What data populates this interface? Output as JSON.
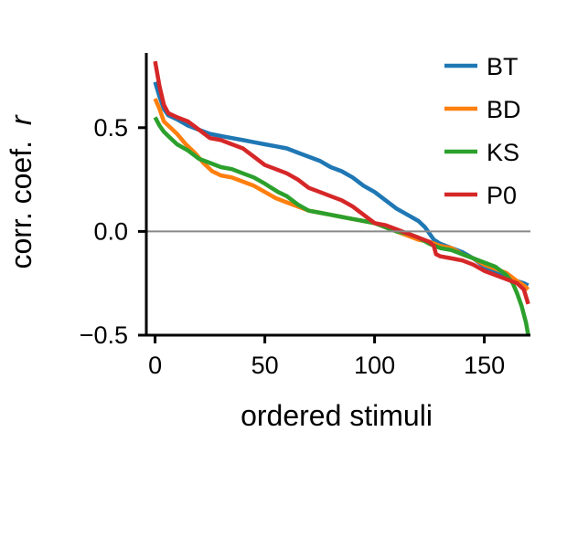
{
  "chart_data": {
    "type": "line",
    "title": "",
    "xlabel": "ordered stimuli",
    "ylabel": "corr. coef.",
    "ylabel_symbol": "r",
    "xlim": [
      -4,
      171
    ],
    "ylim": [
      -0.5,
      0.86
    ],
    "x_ticks": [
      0,
      50,
      100,
      150
    ],
    "x_tick_labels": [
      "0",
      "50",
      "100",
      "150"
    ],
    "y_ticks": [
      -0.5,
      0.0,
      0.5
    ],
    "y_tick_labels": [
      "−0.5",
      "0.0",
      "0.5"
    ],
    "reference_line": {
      "y": 0.0,
      "color": "#888888"
    },
    "grid": false,
    "legend_position": "top-right",
    "series": [
      {
        "name": "BT",
        "color": "#1f77b4",
        "points": [
          [
            0,
            0.72
          ],
          [
            2,
            0.65
          ],
          [
            4,
            0.59
          ],
          [
            6,
            0.56
          ],
          [
            10,
            0.54
          ],
          [
            15,
            0.51
          ],
          [
            20,
            0.49
          ],
          [
            25,
            0.47
          ],
          [
            30,
            0.46
          ],
          [
            35,
            0.45
          ],
          [
            40,
            0.44
          ],
          [
            45,
            0.43
          ],
          [
            50,
            0.42
          ],
          [
            55,
            0.41
          ],
          [
            60,
            0.4
          ],
          [
            65,
            0.38
          ],
          [
            70,
            0.36
          ],
          [
            75,
            0.34
          ],
          [
            80,
            0.31
          ],
          [
            85,
            0.29
          ],
          [
            90,
            0.26
          ],
          [
            95,
            0.22
          ],
          [
            100,
            0.19
          ],
          [
            105,
            0.15
          ],
          [
            110,
            0.11
          ],
          [
            115,
            0.08
          ],
          [
            120,
            0.05
          ],
          [
            123,
            0.02
          ],
          [
            125,
            -0.01
          ],
          [
            127,
            -0.04
          ],
          [
            130,
            -0.06
          ],
          [
            135,
            -0.08
          ],
          [
            140,
            -0.1
          ],
          [
            145,
            -0.13
          ],
          [
            150,
            -0.17
          ],
          [
            155,
            -0.2
          ],
          [
            160,
            -0.22
          ],
          [
            165,
            -0.24
          ],
          [
            168,
            -0.25
          ],
          [
            170,
            -0.26
          ]
        ]
      },
      {
        "name": "BD",
        "color": "#ff7f0e",
        "points": [
          [
            0,
            0.64
          ],
          [
            2,
            0.59
          ],
          [
            4,
            0.53
          ],
          [
            7,
            0.5
          ],
          [
            10,
            0.47
          ],
          [
            14,
            0.42
          ],
          [
            18,
            0.38
          ],
          [
            22,
            0.33
          ],
          [
            26,
            0.29
          ],
          [
            30,
            0.27
          ],
          [
            35,
            0.26
          ],
          [
            40,
            0.24
          ],
          [
            45,
            0.22
          ],
          [
            50,
            0.19
          ],
          [
            55,
            0.16
          ],
          [
            60,
            0.14
          ],
          [
            65,
            0.12
          ],
          [
            70,
            0.1
          ],
          [
            75,
            0.09
          ],
          [
            80,
            0.08
          ],
          [
            85,
            0.07
          ],
          [
            90,
            0.06
          ],
          [
            95,
            0.05
          ],
          [
            100,
            0.04
          ],
          [
            105,
            0.02
          ],
          [
            110,
            0.0
          ],
          [
            115,
            -0.02
          ],
          [
            120,
            -0.04
          ],
          [
            125,
            -0.05
          ],
          [
            130,
            -0.07
          ],
          [
            135,
            -0.08
          ],
          [
            140,
            -0.11
          ],
          [
            145,
            -0.13
          ],
          [
            150,
            -0.16
          ],
          [
            155,
            -0.18
          ],
          [
            160,
            -0.2
          ],
          [
            165,
            -0.24
          ],
          [
            168,
            -0.26
          ],
          [
            170,
            -0.28
          ]
        ]
      },
      {
        "name": "KS",
        "color": "#2ca02c",
        "points": [
          [
            0,
            0.55
          ],
          [
            2,
            0.51
          ],
          [
            4,
            0.48
          ],
          [
            7,
            0.45
          ],
          [
            10,
            0.42
          ],
          [
            15,
            0.39
          ],
          [
            20,
            0.35
          ],
          [
            25,
            0.33
          ],
          [
            30,
            0.31
          ],
          [
            35,
            0.3
          ],
          [
            40,
            0.28
          ],
          [
            45,
            0.26
          ],
          [
            50,
            0.23
          ],
          [
            53,
            0.21
          ],
          [
            56,
            0.19
          ],
          [
            60,
            0.17
          ],
          [
            65,
            0.13
          ],
          [
            70,
            0.1
          ],
          [
            75,
            0.09
          ],
          [
            80,
            0.08
          ],
          [
            85,
            0.07
          ],
          [
            90,
            0.06
          ],
          [
            95,
            0.05
          ],
          [
            100,
            0.04
          ],
          [
            105,
            0.02
          ],
          [
            110,
            0.0
          ],
          [
            115,
            -0.01
          ],
          [
            120,
            -0.03
          ],
          [
            125,
            -0.06
          ],
          [
            130,
            -0.08
          ],
          [
            135,
            -0.09
          ],
          [
            140,
            -0.11
          ],
          [
            145,
            -0.13
          ],
          [
            150,
            -0.15
          ],
          [
            155,
            -0.17
          ],
          [
            160,
            -0.21
          ],
          [
            163,
            -0.25
          ],
          [
            165,
            -0.3
          ],
          [
            167,
            -0.36
          ],
          [
            169,
            -0.44
          ],
          [
            170,
            -0.5
          ]
        ]
      },
      {
        "name": "P0",
        "color": "#d62728",
        "points": [
          [
            0,
            0.82
          ],
          [
            2,
            0.7
          ],
          [
            4,
            0.61
          ],
          [
            6,
            0.57
          ],
          [
            10,
            0.55
          ],
          [
            15,
            0.53
          ],
          [
            20,
            0.49
          ],
          [
            25,
            0.45
          ],
          [
            30,
            0.44
          ],
          [
            35,
            0.42
          ],
          [
            40,
            0.4
          ],
          [
            45,
            0.36
          ],
          [
            50,
            0.32
          ],
          [
            55,
            0.3
          ],
          [
            60,
            0.28
          ],
          [
            65,
            0.25
          ],
          [
            70,
            0.21
          ],
          [
            75,
            0.19
          ],
          [
            80,
            0.17
          ],
          [
            85,
            0.15
          ],
          [
            90,
            0.12
          ],
          [
            95,
            0.08
          ],
          [
            100,
            0.04
          ],
          [
            105,
            0.03
          ],
          [
            110,
            0.01
          ],
          [
            115,
            -0.01
          ],
          [
            120,
            -0.03
          ],
          [
            125,
            -0.05
          ],
          [
            127,
            -0.07
          ],
          [
            128,
            -0.11
          ],
          [
            130,
            -0.12
          ],
          [
            135,
            -0.13
          ],
          [
            140,
            -0.14
          ],
          [
            145,
            -0.16
          ],
          [
            150,
            -0.19
          ],
          [
            155,
            -0.21
          ],
          [
            160,
            -0.23
          ],
          [
            165,
            -0.25
          ],
          [
            168,
            -0.28
          ],
          [
            170,
            -0.35
          ]
        ]
      }
    ]
  }
}
